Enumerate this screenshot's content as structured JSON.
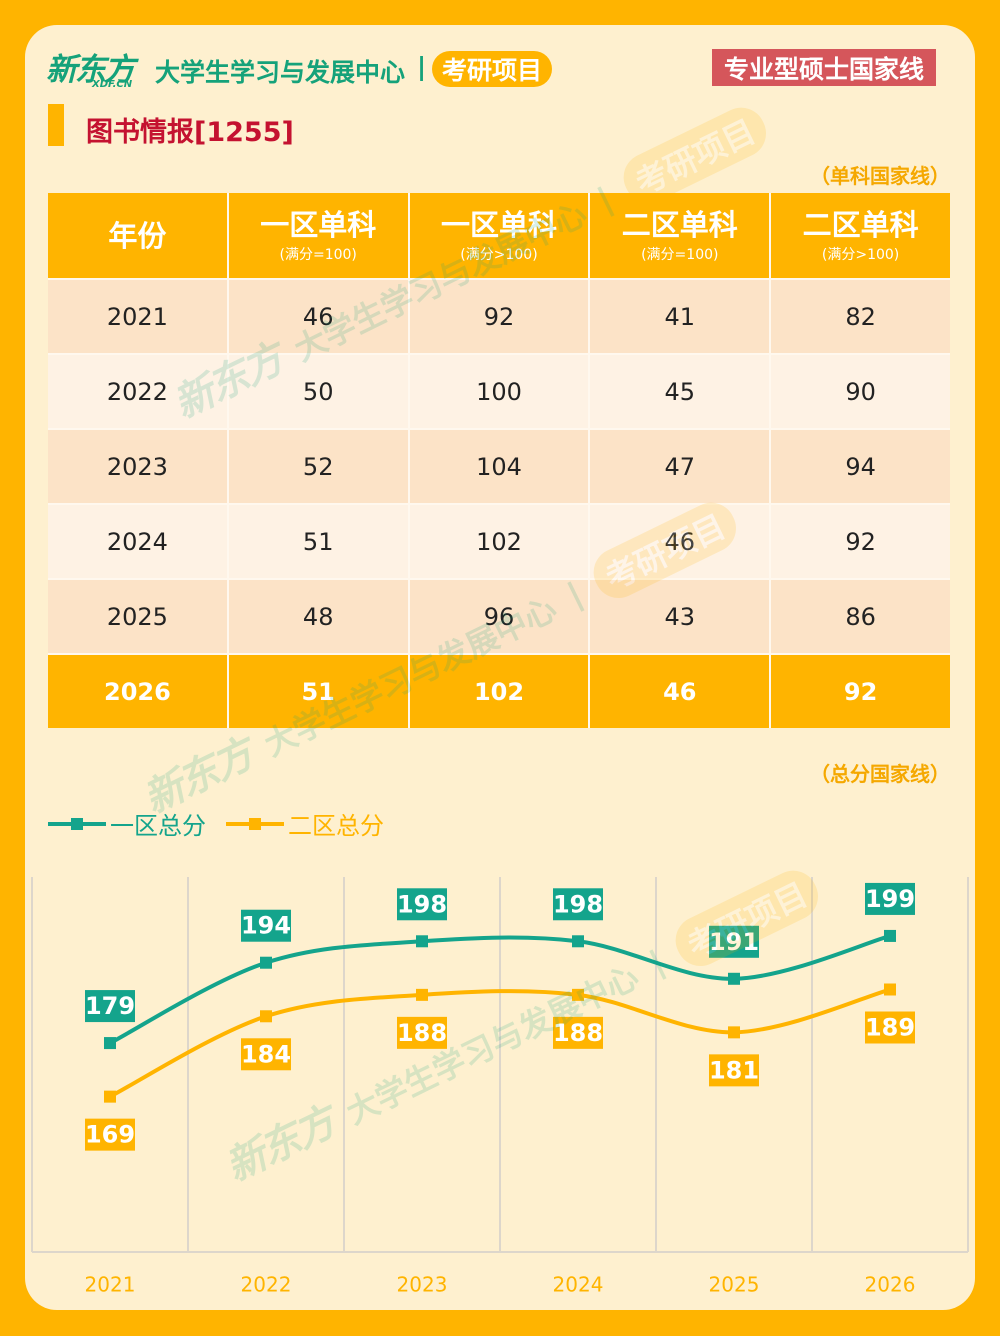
{
  "header": {
    "logo_text": "新东方",
    "logo_sub": "XDF.CN",
    "center_name": "大学生学习与发展中心",
    "separator": "|",
    "project_badge": "考研项目",
    "page_badge": "专业型硕士国家线"
  },
  "section": {
    "title": "图书情报[1255]"
  },
  "table": {
    "caption": "（单科国家线）",
    "columns": [
      {
        "label": "年份",
        "sub": ""
      },
      {
        "label": "一区单科",
        "sub": "(满分=100)"
      },
      {
        "label": "一区单科",
        "sub": "(满分>100)"
      },
      {
        "label": "二区单科",
        "sub": "(满分=100)"
      },
      {
        "label": "二区单科",
        "sub": "(满分>100)"
      }
    ],
    "rows": [
      [
        "2021",
        46,
        92,
        41,
        82
      ],
      [
        "2022",
        50,
        100,
        45,
        90
      ],
      [
        "2023",
        52,
        104,
        47,
        94
      ],
      [
        "2024",
        51,
        102,
        46,
        92
      ],
      [
        "2025",
        48,
        96,
        43,
        86
      ],
      [
        "2026",
        51,
        102,
        46,
        92
      ]
    ]
  },
  "chart_caption": "（总分国家线）",
  "chart_data": {
    "type": "line",
    "x": [
      "2021",
      "2022",
      "2023",
      "2024",
      "2025",
      "2026"
    ],
    "series": [
      {
        "name": "一区总分",
        "values": [
          179,
          194,
          198,
          198,
          191,
          199
        ],
        "color": "#14A48C"
      },
      {
        "name": "二区总分",
        "values": [
          169,
          184,
          188,
          188,
          181,
          189
        ],
        "color": "#FFB400"
      }
    ],
    "ylim": [
      140,
      210
    ],
    "grid": "vertical",
    "legend": "top-left",
    "data_labels": true,
    "smooth": true
  },
  "colors": {
    "frame": "#FFB400",
    "card": "#FEF0CF",
    "brand_green": "#15A27A",
    "teal": "#14A48C",
    "orange": "#FFB400",
    "title_red": "#C41230",
    "badge_red": "#D5565B",
    "row_peach": "#FCE3C7",
    "row_light": "#FEF2E4",
    "grid": "#DDD6CB"
  }
}
